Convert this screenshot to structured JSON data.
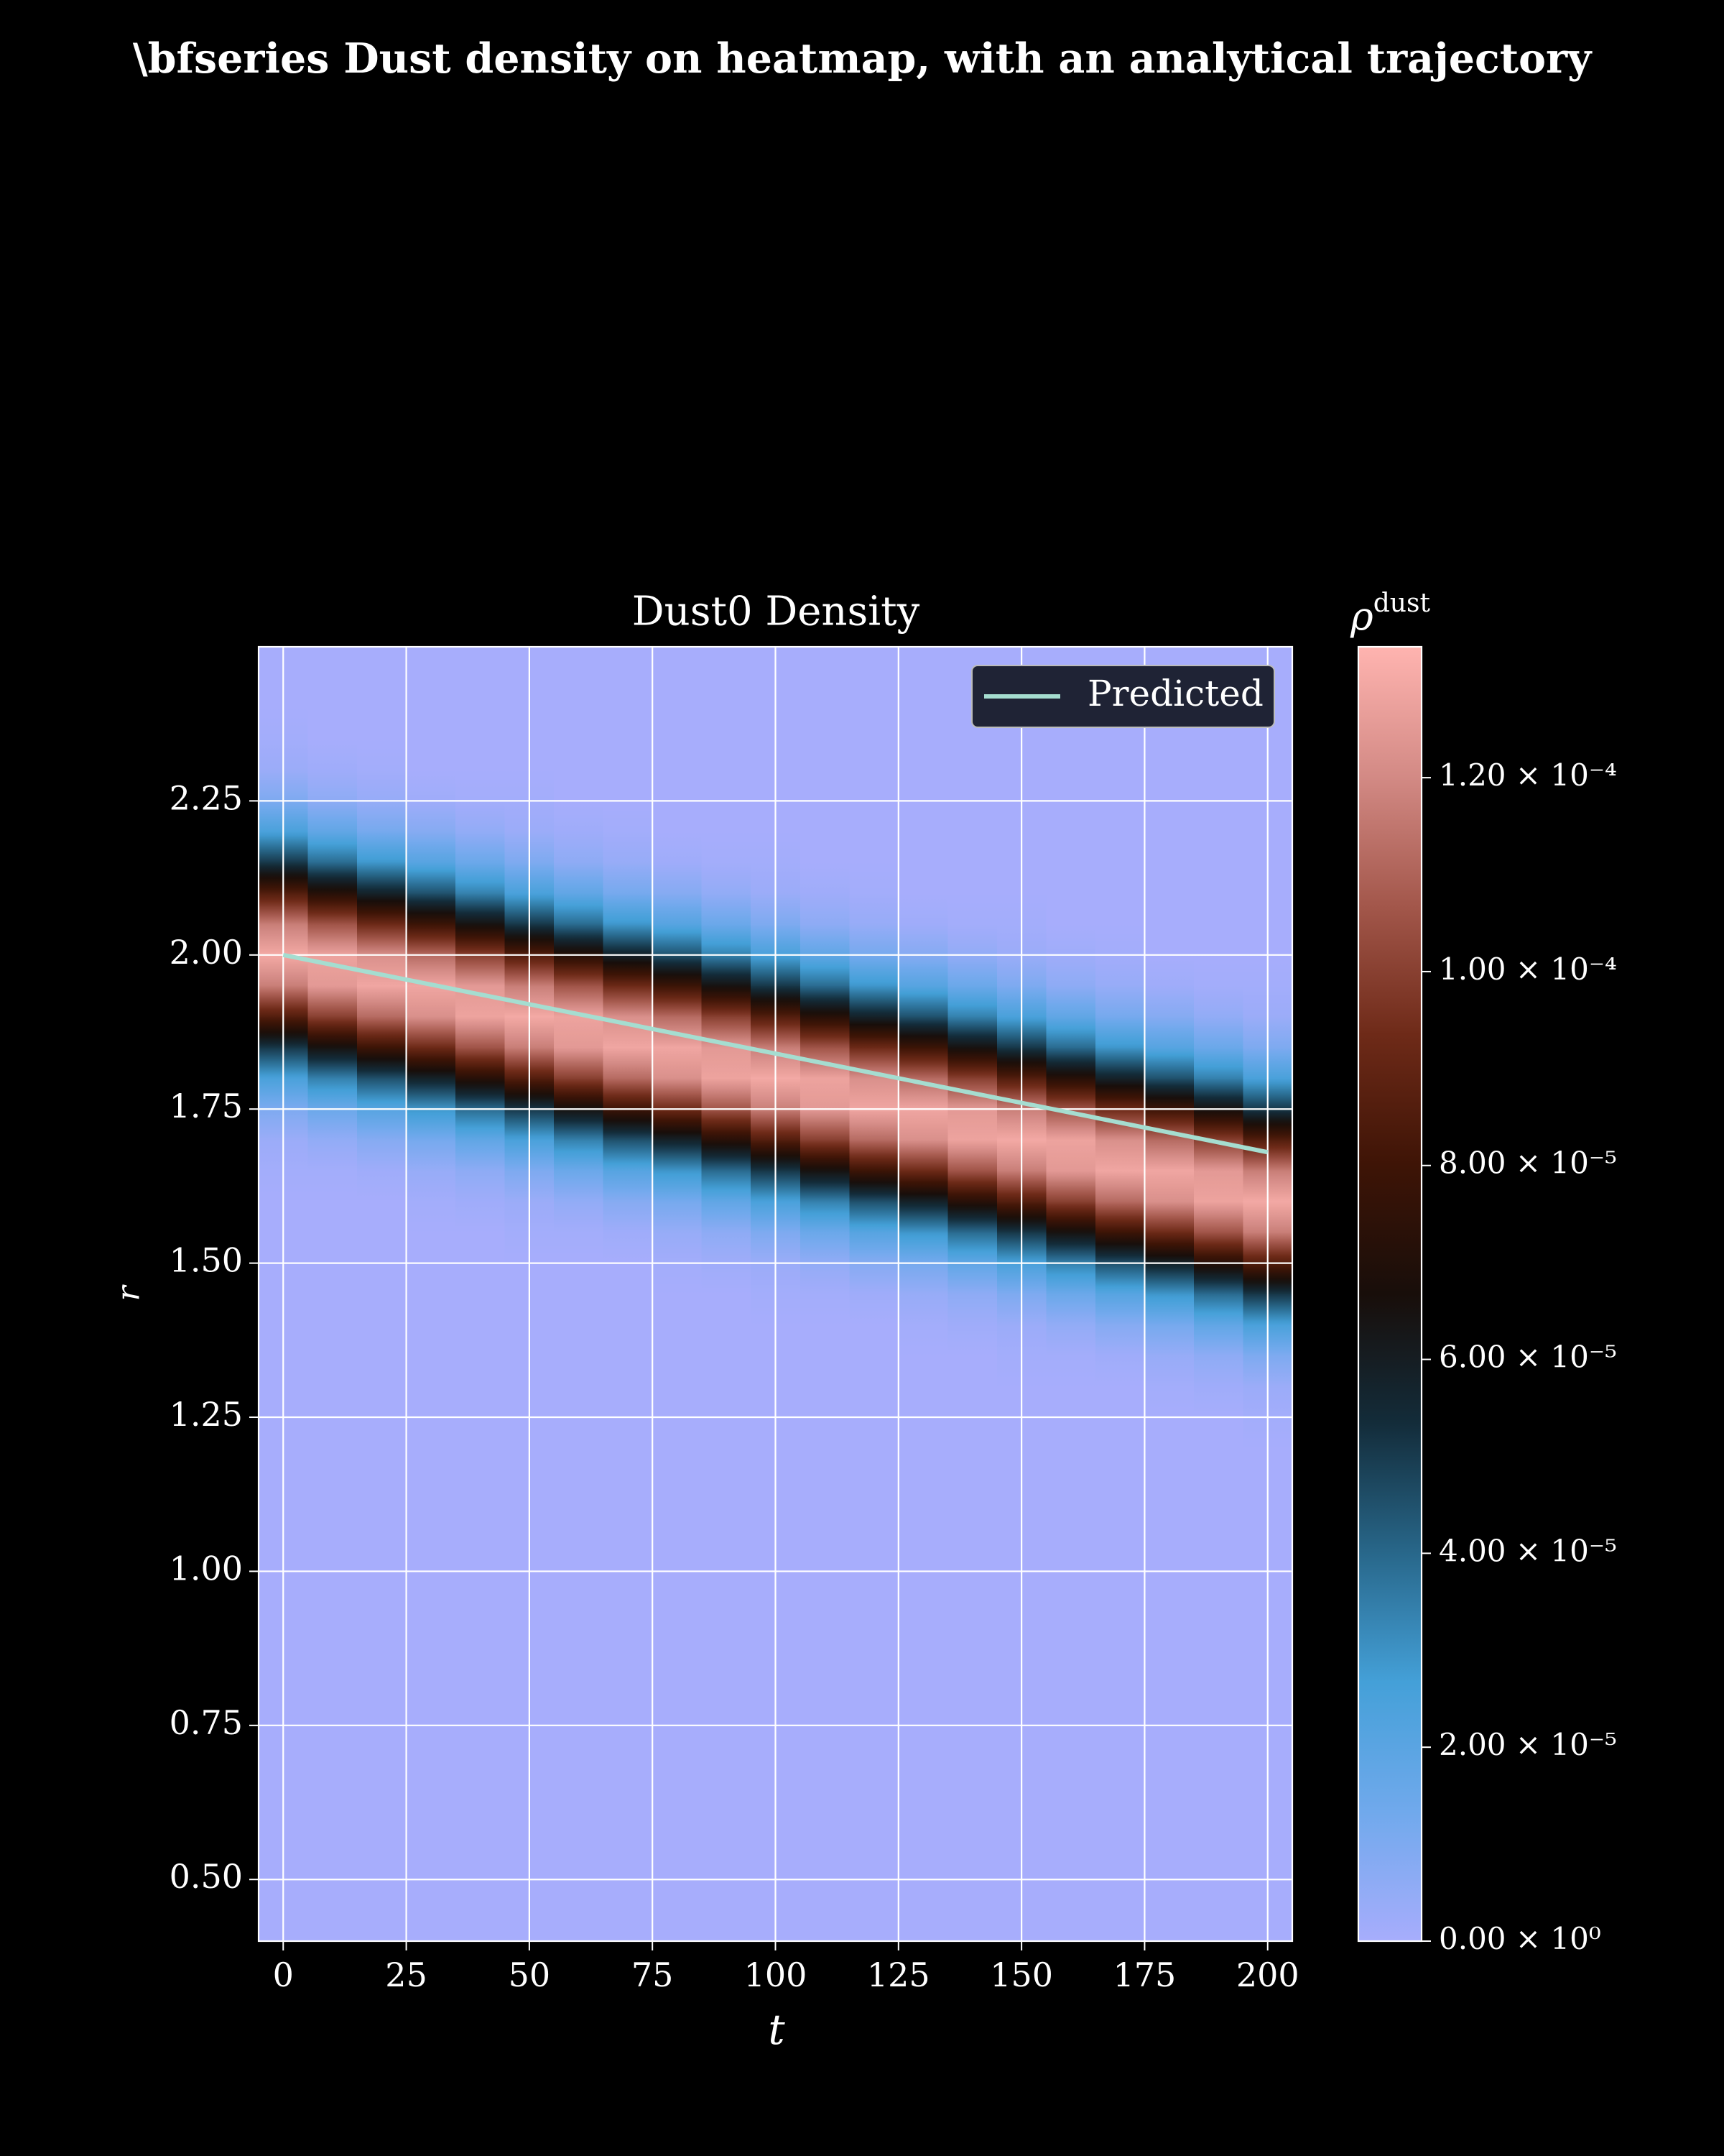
{
  "chart_data": {
    "type": "heatmap",
    "suptitle": "\\bfseries Dust density on heatmap, with an analytical trajectory",
    "title": "Dust0 Density",
    "xlabel": "t",
    "ylabel": "r",
    "colorbar_label": "ρ",
    "colorbar_label_sup": "dust",
    "xlim": [
      -5,
      205
    ],
    "ylim": [
      0.4,
      2.5
    ],
    "zlim": [
      0,
      0.0001335
    ],
    "xticks": [
      0,
      25,
      50,
      75,
      100,
      125,
      150,
      175,
      200
    ],
    "yticks": [
      {
        "value": 0.5,
        "label": "0.50"
      },
      0.75,
      {
        "value": 1.0,
        "label": "1.00"
      },
      1.25,
      {
        "value": 1.5,
        "label": "1.50"
      },
      1.75,
      {
        "value": 2.0,
        "label": "2.00"
      },
      2.25
    ],
    "zticks": [
      {
        "value": 0,
        "label": "0.00 × 10⁰"
      },
      {
        "value": 2e-05,
        "label": "2.00 × 10⁻⁵"
      },
      {
        "value": 4e-05,
        "label": "4.00 × 10⁻⁵"
      },
      {
        "value": 6e-05,
        "label": "6.00 × 10⁻⁵"
      },
      {
        "value": 8e-05,
        "label": "8.00 × 10⁻⁵"
      },
      {
        "value": 0.0001,
        "label": "1.00 × 10⁻⁴"
      },
      {
        "value": 0.00012,
        "label": "1.20 × 10⁻⁴"
      }
    ],
    "grid": true,
    "legend": "upper right",
    "colormap": [
      "#a7adfc",
      "#70a9ec",
      "#44a0d8",
      "#28678a",
      "#132c3a",
      "#180e0a",
      "#3e1406",
      "#6e2a18",
      "#a3574b",
      "#d38a85",
      "#ffb4b0"
    ],
    "x": [
      0,
      10,
      20,
      30,
      40,
      50,
      60,
      70,
      80,
      90,
      100,
      110,
      120,
      130,
      140,
      150,
      160,
      170,
      180,
      190,
      200
    ],
    "y": [
      0.4,
      0.45,
      0.5,
      0.55,
      0.6,
      0.65,
      0.7,
      0.75,
      0.8,
      0.85,
      0.9,
      0.95,
      1.0,
      1.05,
      1.1,
      1.15,
      1.2,
      1.25,
      1.3,
      1.35,
      1.4,
      1.45,
      1.5,
      1.55,
      1.6,
      1.65,
      1.7,
      1.75,
      1.8,
      1.85,
      1.9,
      1.95,
      2.0,
      2.05,
      2.1,
      2.15,
      2.2,
      2.25,
      2.3,
      2.35,
      2.4,
      2.45,
      2.5
    ],
    "z": [
      [
        0,
        0,
        0,
        0,
        0,
        0,
        0,
        0,
        0,
        0,
        0,
        0,
        0,
        0,
        0,
        0,
        0,
        0,
        0,
        0,
        0,
        0,
        0,
        0,
        0,
        1e-06,
        3e-06,
        1e-05,
        2.5e-05,
        5.1e-05,
        8.6e-05,
        0.000117,
        0.00013,
        0.000117,
        8.6e-05,
        5.1e-05,
        2.5e-05,
        1e-05,
        3e-06,
        1e-06,
        0,
        0,
        0
      ],
      [
        0,
        0,
        0,
        0,
        0,
        0,
        0,
        0,
        0,
        0,
        0,
        0,
        0,
        0,
        0,
        0,
        0,
        0,
        0,
        0,
        0,
        0,
        0,
        0,
        0,
        1e-06,
        5e-06,
        1.5e-05,
        3.4e-05,
        6.5e-05,
        0.0001,
        0.000125,
        0.000128,
        0.000106,
        7.2e-05,
        3.9e-05,
        1.8e-05,
        6e-06,
        2e-06,
        0,
        0,
        0,
        0
      ],
      [
        0,
        0,
        0,
        0,
        0,
        0,
        0,
        0,
        0,
        0,
        0,
        0,
        0,
        0,
        0,
        0,
        0,
        0,
        0,
        0,
        0,
        0,
        0,
        0,
        0,
        2e-06,
        8e-06,
        2.1e-05,
        4.5e-05,
        7.9e-05,
        0.000112,
        0.000129,
        0.000122,
        9.3e-05,
        5.8e-05,
        2.9e-05,
        1.2e-05,
        4e-06,
        1e-06,
        0,
        0,
        0,
        0
      ],
      [
        0,
        0,
        0,
        0,
        0,
        0,
        0,
        0,
        0,
        0,
        0,
        0,
        0,
        0,
        0,
        0,
        0,
        0,
        0,
        0,
        0,
        0,
        0,
        0,
        1e-06,
        4e-06,
        1.2e-05,
        2.9e-05,
        5.8e-05,
        9.3e-05,
        0.000122,
        0.000129,
        0.000112,
        7.9e-05,
        4.5e-05,
        2.1e-05,
        8e-06,
        2e-06,
        0,
        0,
        0,
        0,
        0
      ],
      [
        0,
        0,
        0,
        0,
        0,
        0,
        0,
        0,
        0,
        0,
        0,
        0,
        0,
        0,
        0,
        0,
        0,
        0,
        0,
        0,
        0,
        0,
        0,
        0,
        2e-06,
        6e-06,
        1.8e-05,
        3.9e-05,
        7.2e-05,
        0.000106,
        0.000128,
        0.000125,
        0.0001,
        6.5e-05,
        3.4e-05,
        1.5e-05,
        5e-06,
        1e-06,
        0,
        0,
        0,
        0,
        0
      ],
      [
        0,
        0,
        0,
        0,
        0,
        0,
        0,
        0,
        0,
        0,
        0,
        0,
        0,
        0,
        0,
        0,
        0,
        0,
        0,
        0,
        0,
        0,
        0,
        1e-06,
        3e-06,
        1e-05,
        2.5e-05,
        5.1e-05,
        8.6e-05,
        0.000117,
        0.00013,
        0.000117,
        8.6e-05,
        5.1e-05,
        2.5e-05,
        1e-05,
        3e-06,
        1e-06,
        0,
        0,
        0,
        0,
        0
      ],
      [
        0,
        0,
        0,
        0,
        0,
        0,
        0,
        0,
        0,
        0,
        0,
        0,
        0,
        0,
        0,
        0,
        0,
        0,
        0,
        0,
        0,
        0,
        0,
        1e-06,
        5e-06,
        1.5e-05,
        3.4e-05,
        6.5e-05,
        0.0001,
        0.000125,
        0.000128,
        0.000106,
        7.2e-05,
        3.9e-05,
        1.8e-05,
        6e-06,
        2e-06,
        0,
        0,
        0,
        0,
        0,
        0
      ],
      [
        0,
        0,
        0,
        0,
        0,
        0,
        0,
        0,
        0,
        0,
        0,
        0,
        0,
        0,
        0,
        0,
        0,
        0,
        0,
        0,
        0,
        0,
        0,
        2e-06,
        8e-06,
        2.1e-05,
        4.5e-05,
        7.9e-05,
        0.000112,
        0.000129,
        0.000122,
        9.3e-05,
        5.8e-05,
        2.9e-05,
        1.2e-05,
        4e-06,
        1e-06,
        0,
        0,
        0,
        0,
        0,
        0
      ],
      [
        0,
        0,
        0,
        0,
        0,
        0,
        0,
        0,
        0,
        0,
        0,
        0,
        0,
        0,
        0,
        0,
        0,
        0,
        0,
        0,
        0,
        0,
        1e-06,
        4e-06,
        1.2e-05,
        2.9e-05,
        5.8e-05,
        9.3e-05,
        0.000122,
        0.000129,
        0.000112,
        7.9e-05,
        4.5e-05,
        2.1e-05,
        8e-06,
        2e-06,
        0,
        0,
        0,
        0,
        0,
        0,
        0
      ],
      [
        0,
        0,
        0,
        0,
        0,
        0,
        0,
        0,
        0,
        0,
        0,
        0,
        0,
        0,
        0,
        0,
        0,
        0,
        0,
        0,
        0,
        0,
        2e-06,
        6e-06,
        1.8e-05,
        3.9e-05,
        7.2e-05,
        0.000106,
        0.000128,
        0.000125,
        0.0001,
        6.5e-05,
        3.4e-05,
        1.5e-05,
        5e-06,
        1e-06,
        0,
        0,
        0,
        0,
        0,
        0,
        0
      ],
      [
        0,
        0,
        0,
        0,
        0,
        0,
        0,
        0,
        0,
        0,
        0,
        0,
        0,
        0,
        0,
        0,
        0,
        0,
        0,
        0,
        0,
        1e-06,
        3e-06,
        1e-05,
        2.5e-05,
        5.1e-05,
        8.6e-05,
        0.000117,
        0.00013,
        0.000117,
        8.6e-05,
        5.1e-05,
        2.5e-05,
        1e-05,
        3e-06,
        1e-06,
        0,
        0,
        0,
        0,
        0,
        0,
        0
      ],
      [
        0,
        0,
        0,
        0,
        0,
        0,
        0,
        0,
        0,
        0,
        0,
        0,
        0,
        0,
        0,
        0,
        0,
        0,
        0,
        0,
        0,
        1e-06,
        5e-06,
        1.5e-05,
        3.4e-05,
        6.5e-05,
        0.0001,
        0.000125,
        0.000128,
        0.000106,
        7.2e-05,
        3.9e-05,
        1.8e-05,
        6e-06,
        2e-06,
        0,
        0,
        0,
        0,
        0,
        0,
        0,
        0
      ],
      [
        0,
        0,
        0,
        0,
        0,
        0,
        0,
        0,
        0,
        0,
        0,
        0,
        0,
        0,
        0,
        0,
        0,
        0,
        0,
        0,
        0,
        2e-06,
        8e-06,
        2.1e-05,
        4.5e-05,
        7.9e-05,
        0.000112,
        0.000129,
        0.000122,
        9.3e-05,
        5.8e-05,
        2.9e-05,
        1.2e-05,
        4e-06,
        1e-06,
        0,
        0,
        0,
        0,
        0,
        0,
        0,
        0
      ],
      [
        0,
        0,
        0,
        0,
        0,
        0,
        0,
        0,
        0,
        0,
        0,
        0,
        0,
        0,
        0,
        0,
        0,
        0,
        0,
        0,
        1e-06,
        4e-06,
        1.2e-05,
        2.9e-05,
        5.8e-05,
        9.3e-05,
        0.000122,
        0.000129,
        0.000112,
        7.9e-05,
        4.5e-05,
        2.1e-05,
        8e-06,
        2e-06,
        0,
        0,
        0,
        0,
        0,
        0,
        0,
        0,
        0
      ],
      [
        0,
        0,
        0,
        0,
        0,
        0,
        0,
        0,
        0,
        0,
        0,
        0,
        0,
        0,
        0,
        0,
        0,
        0,
        0,
        0,
        2e-06,
        6e-06,
        1.8e-05,
        3.9e-05,
        7.2e-05,
        0.000106,
        0.000128,
        0.000125,
        0.0001,
        6.5e-05,
        3.4e-05,
        1.5e-05,
        5e-06,
        1e-06,
        0,
        0,
        0,
        0,
        0,
        0,
        0,
        0,
        0
      ],
      [
        0,
        0,
        0,
        0,
        0,
        0,
        0,
        0,
        0,
        0,
        0,
        0,
        0,
        0,
        0,
        0,
        0,
        0,
        0,
        1e-06,
        3e-06,
        1e-05,
        2.5e-05,
        5.1e-05,
        8.6e-05,
        0.000117,
        0.00013,
        0.000117,
        8.6e-05,
        5.1e-05,
        2.5e-05,
        1e-05,
        3e-06,
        1e-06,
        0,
        0,
        0,
        0,
        0,
        0,
        0,
        0,
        0
      ],
      [
        0,
        0,
        0,
        0,
        0,
        0,
        0,
        0,
        0,
        0,
        0,
        0,
        0,
        0,
        0,
        0,
        0,
        0,
        0,
        1e-06,
        5e-06,
        1.5e-05,
        3.4e-05,
        6.5e-05,
        0.0001,
        0.000125,
        0.000128,
        0.000106,
        7.2e-05,
        3.9e-05,
        1.8e-05,
        6e-06,
        2e-06,
        0,
        0,
        0,
        0,
        0,
        0,
        0,
        0,
        0,
        0
      ],
      [
        0,
        0,
        0,
        0,
        0,
        0,
        0,
        0,
        0,
        0,
        0,
        0,
        0,
        0,
        0,
        0,
        0,
        0,
        0,
        2e-06,
        8e-06,
        2.1e-05,
        4.5e-05,
        7.9e-05,
        0.000112,
        0.000129,
        0.000122,
        9.3e-05,
        5.8e-05,
        2.9e-05,
        1.2e-05,
        4e-06,
        1e-06,
        0,
        0,
        0,
        0,
        0,
        0,
        0,
        0,
        0,
        0
      ],
      [
        0,
        0,
        0,
        0,
        0,
        0,
        0,
        0,
        0,
        0,
        0,
        0,
        0,
        0,
        0,
        0,
        0,
        0,
        1e-06,
        4e-06,
        1.2e-05,
        2.9e-05,
        5.8e-05,
        9.3e-05,
        0.000122,
        0.000129,
        0.000112,
        7.9e-05,
        4.5e-05,
        2.1e-05,
        8e-06,
        2e-06,
        0,
        0,
        0,
        0,
        0,
        0,
        0,
        0,
        0,
        0,
        0
      ],
      [
        0,
        0,
        0,
        0,
        0,
        0,
        0,
        0,
        0,
        0,
        0,
        0,
        0,
        0,
        0,
        0,
        0,
        0,
        2e-06,
        6e-06,
        1.8e-05,
        3.9e-05,
        7.2e-05,
        0.000106,
        0.000128,
        0.000125,
        0.0001,
        6.5e-05,
        3.4e-05,
        1.5e-05,
        5e-06,
        1e-06,
        0,
        0,
        0,
        0,
        0,
        0,
        0,
        0,
        0,
        0,
        0
      ],
      [
        0,
        0,
        0,
        0,
        0,
        0,
        0,
        0,
        0,
        0,
        0,
        0,
        0,
        0,
        0,
        0,
        0,
        1e-06,
        3e-06,
        1e-05,
        2.5e-05,
        5.1e-05,
        8.6e-05,
        0.000117,
        0.00013,
        0.000117,
        8.6e-05,
        5.1e-05,
        2.5e-05,
        1e-05,
        3e-06,
        1e-06,
        0,
        0,
        0,
        0,
        0,
        0,
        0,
        0,
        0,
        0,
        0
      ]
    ],
    "lines": [
      {
        "name": "Predicted",
        "color": "#a5ddd0",
        "x": [
          0,
          200
        ],
        "y": [
          2.0,
          1.68
        ]
      }
    ]
  }
}
